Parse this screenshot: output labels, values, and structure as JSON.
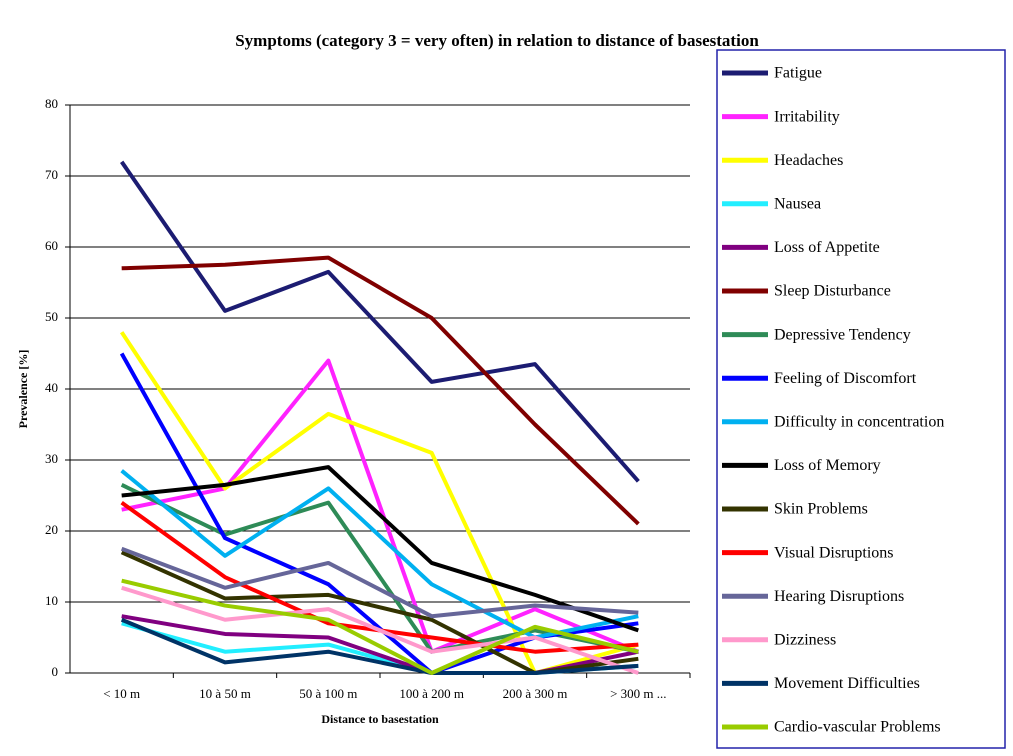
{
  "chart_data": {
    "type": "line",
    "title": "Symptoms (category 3 = very often)  in relation to distance of  basestation",
    "x_label": "Distance to  basestation",
    "y_label": "Prevalence [%]",
    "categories": [
      "< 10 m",
      "10 à 50 m",
      "50 à 100 m",
      "100 à 200 m",
      "200 à 300 m",
      "> 300 m ..."
    ],
    "ylim": [
      0,
      80
    ],
    "yticks": [
      0,
      10,
      20,
      30,
      40,
      50,
      60,
      70,
      80
    ],
    "grid": true,
    "legend": "right",
    "series": [
      {
        "name": "Fatigue",
        "color": "#1c1c72",
        "values": [
          72,
          51,
          56.5,
          41,
          43.5,
          27
        ]
      },
      {
        "name": "Irritability",
        "color": "#ff22ff",
        "values": [
          23,
          26,
          44,
          3,
          9,
          3
        ]
      },
      {
        "name": "Headaches",
        "color": "#ffff00",
        "values": [
          48,
          26,
          36.5,
          31,
          0,
          4
        ]
      },
      {
        "name": "Nausea",
        "color": "#22eeff",
        "values": [
          7,
          3,
          4,
          0,
          0,
          1
        ]
      },
      {
        "name": "Loss of Appetite",
        "color": "#800080",
        "values": [
          8,
          5.5,
          5,
          0,
          0,
          3
        ]
      },
      {
        "name": "Sleep Disturbance",
        "color": "#800000",
        "values": [
          57,
          57.5,
          58.5,
          50,
          35,
          21
        ]
      },
      {
        "name": "Depressive Tendency",
        "color": "#2e8b57",
        "values": [
          26.5,
          19.5,
          24,
          3,
          6,
          3
        ]
      },
      {
        "name": "Feeling of Discomfort",
        "color": "#0000ff",
        "values": [
          45,
          19,
          12.5,
          0,
          5,
          7
        ]
      },
      {
        "name": "Difficulty in concentration",
        "color": "#00b0f0",
        "values": [
          28.5,
          16.5,
          26,
          12.5,
          5,
          8
        ]
      },
      {
        "name": "Loss of Memory",
        "color": "#000000",
        "values": [
          25,
          26.5,
          29,
          15.5,
          11,
          6
        ]
      },
      {
        "name": "Skin Problems",
        "color": "#333300",
        "values": [
          17,
          10.5,
          11,
          7.5,
          0,
          2
        ]
      },
      {
        "name": "Visual Disruptions",
        "color": "#ff0000",
        "values": [
          24,
          13.5,
          7,
          5,
          3,
          4
        ]
      },
      {
        "name": "Hearing Disruptions",
        "color": "#666699",
        "values": [
          17.5,
          12,
          15.5,
          8,
          9.5,
          8.5
        ]
      },
      {
        "name": "Dizziness",
        "color": "#ff99cc",
        "values": [
          12,
          7.5,
          9,
          3,
          5,
          0
        ]
      },
      {
        "name": "Movement Difficulties",
        "color": "#003366",
        "values": [
          7.5,
          1.5,
          3,
          0,
          0,
          1
        ]
      },
      {
        "name": "Cardio-vascular Problems",
        "color": "#99cc00",
        "values": [
          13,
          9.5,
          7.5,
          0,
          6.5,
          3
        ]
      }
    ]
  }
}
